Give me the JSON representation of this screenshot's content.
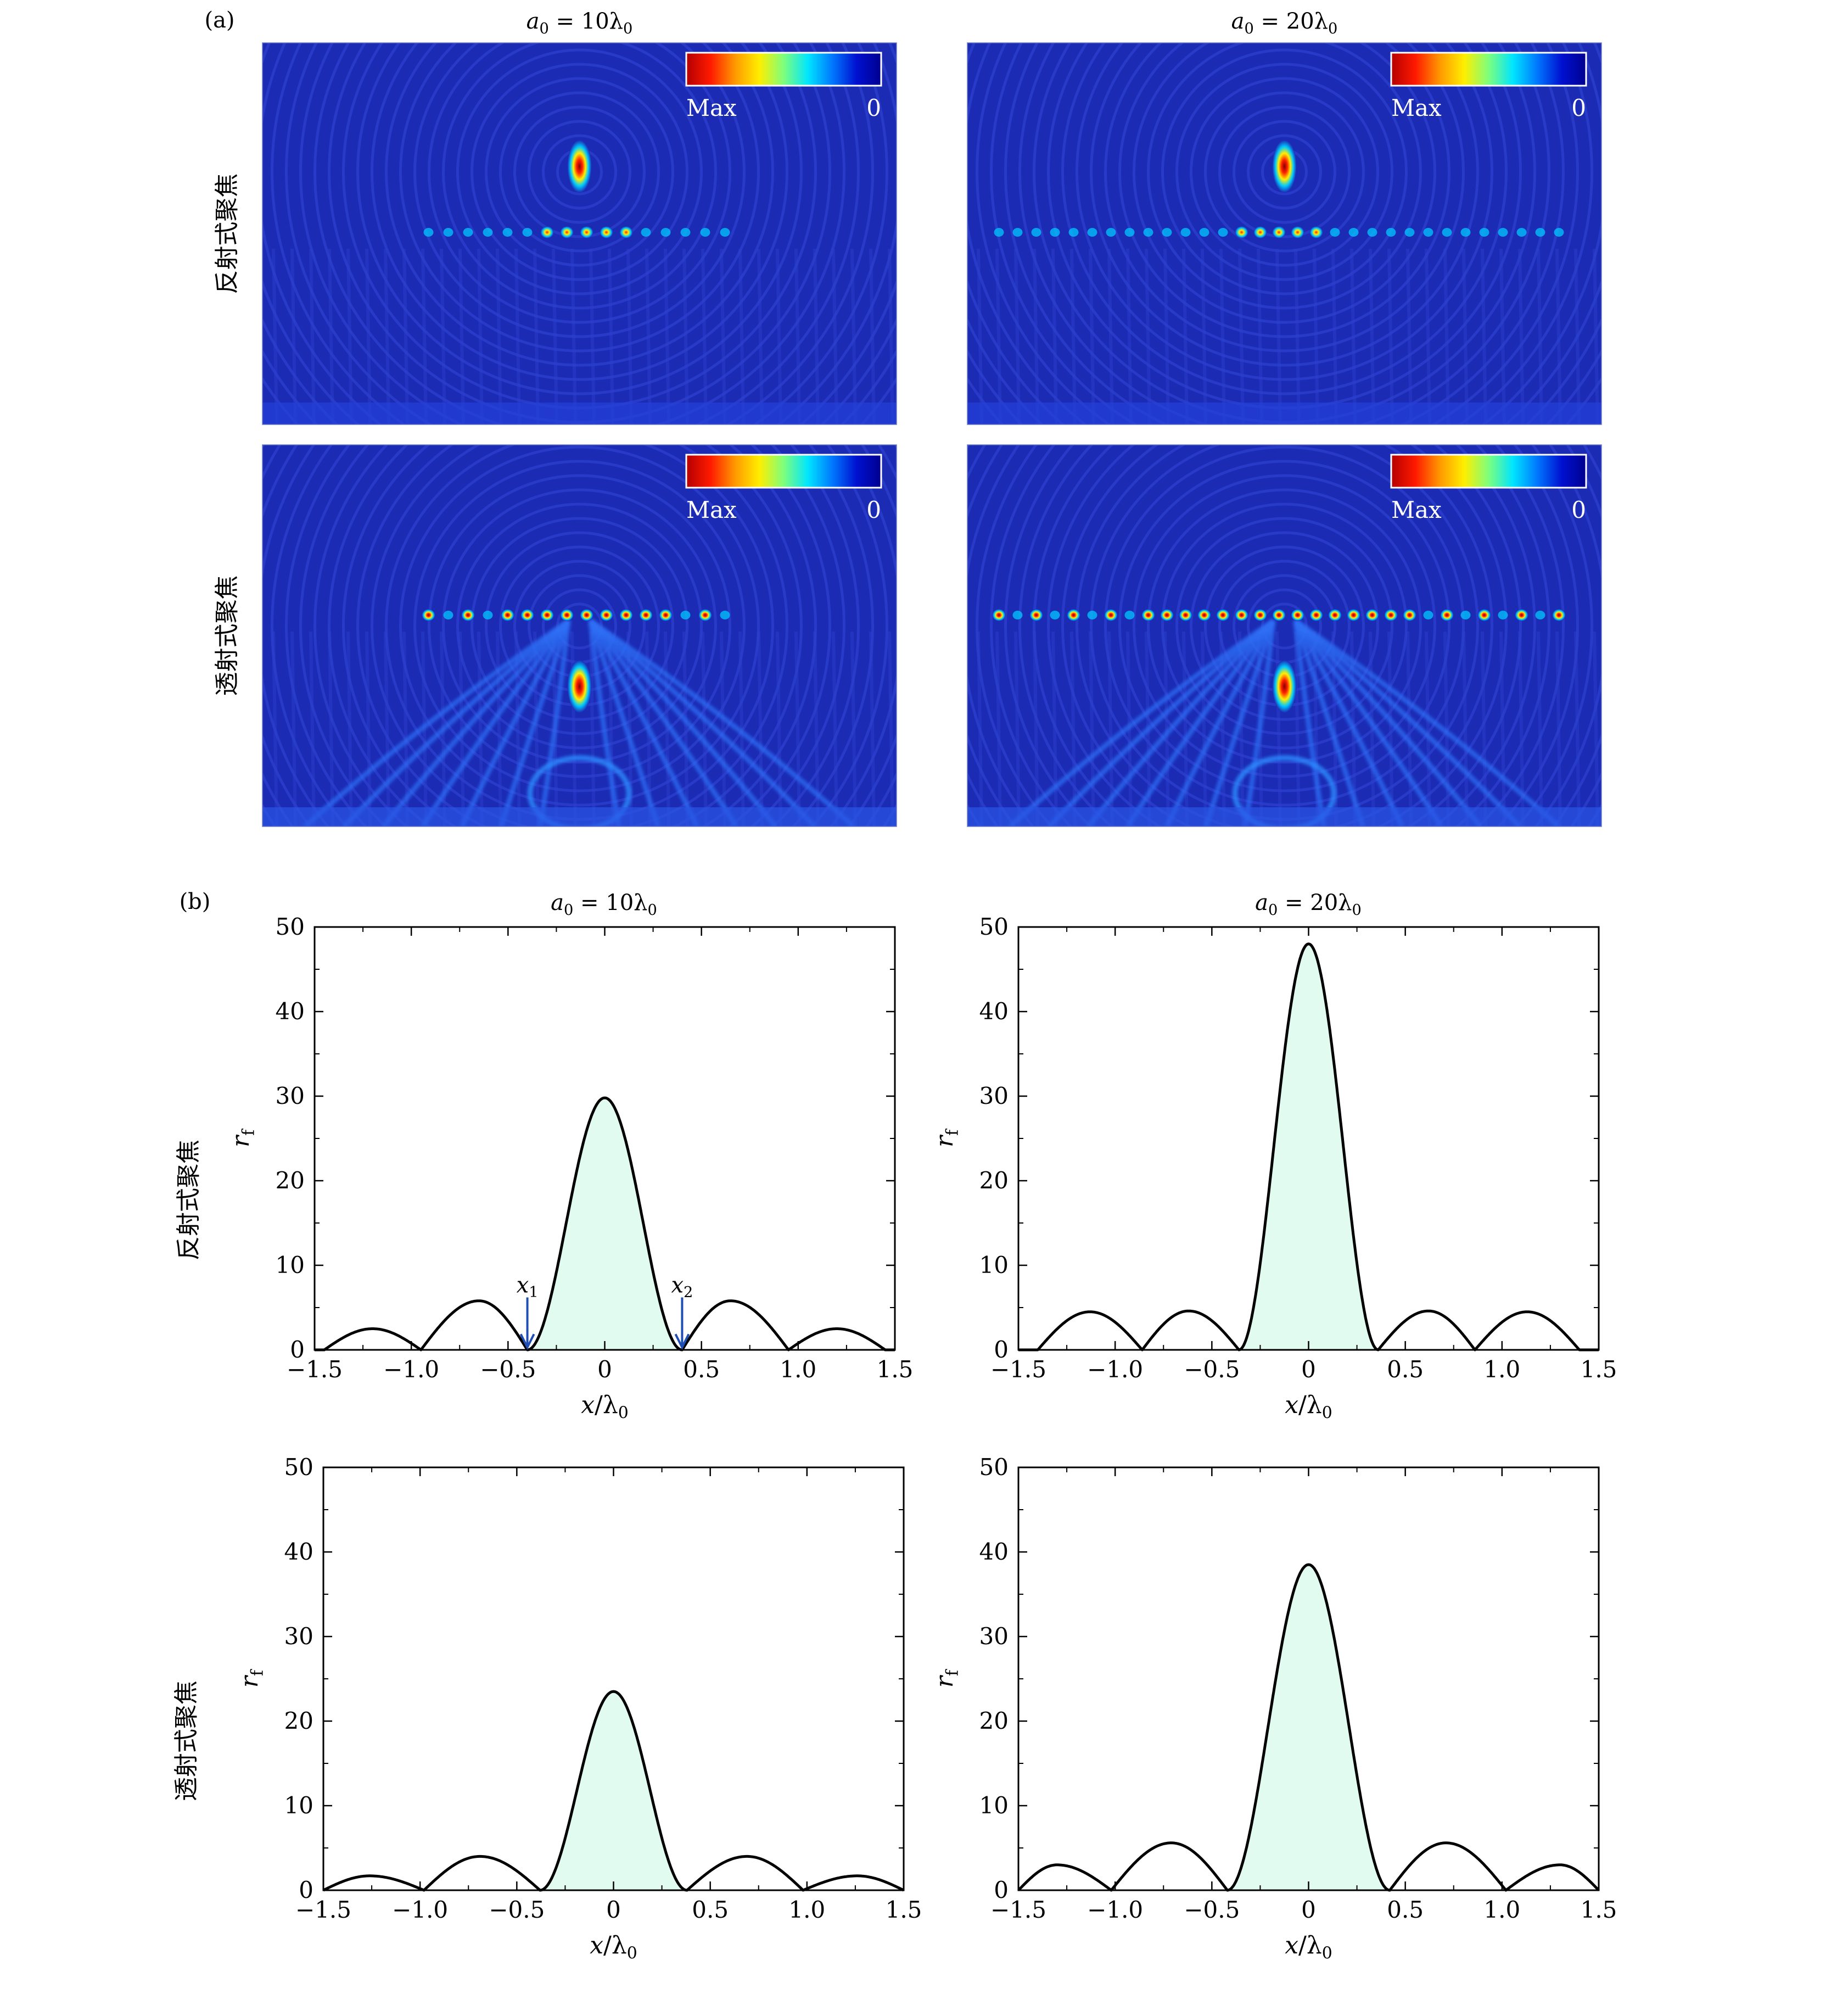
{
  "panel_a": {
    "label": "(a)",
    "columns": [
      "a_0 = 10λ_0",
      "a_0 = 20λ_0"
    ],
    "rows": [
      "反射式聚焦",
      "透射式聚焦"
    ],
    "colorbar": {
      "max_label": "Max",
      "min_label": "0",
      "stops": [
        "#b40000",
        "#ff1a00",
        "#ff9900",
        "#ffee00",
        "#7dff7d",
        "#00e5ff",
        "#0077ff",
        "#0010d0",
        "#00008f"
      ]
    },
    "field_colors": {
      "background": "#1b2bb4",
      "ring": "#3347d8",
      "hot": "#ff2200",
      "warm": "#ffee00",
      "cool": "#00c8ff"
    }
  },
  "panel_b": {
    "label": "(b)",
    "columns": [
      "a_0 = 10λ_0",
      "a_0 = 20λ_0"
    ],
    "rows": [
      "反射式聚焦",
      "透射式聚焦"
    ],
    "annotations": {
      "x1": "x_1",
      "x2": "x_2"
    },
    "colors": {
      "fill": "#e2fbf1",
      "line": "#000000",
      "arrow": "#1f4fb5"
    }
  },
  "chart_data": [
    {
      "type": "line",
      "id": "refl-10",
      "row": "反射式聚焦",
      "column": "a_0 = 10λ_0",
      "title": "a_0 = 10λ_0",
      "xlabel": "x/λ_0",
      "ylabel": "r_f",
      "xlim": [
        -1.5,
        1.5
      ],
      "ylim": [
        0,
        50
      ],
      "xticks": [
        -1.5,
        -1.0,
        -0.5,
        0,
        0.5,
        1.0,
        1.5
      ],
      "xtick_labels": [
        "−1.5",
        "−1.0",
        "−0.5",
        "0",
        "0.5",
        "1.0",
        "1.5"
      ],
      "yticks": [
        0,
        10,
        20,
        30,
        40,
        50
      ],
      "ytick_labels": [
        "0",
        "10",
        "20",
        "30",
        "40",
        "50"
      ],
      "peak": 29.8,
      "main_lobe_halfwidth": 0.4,
      "side_lobes": [
        {
          "x": 0.65,
          "y": 5.8
        },
        {
          "x": 1.2,
          "y": 2.5
        }
      ],
      "zeros": [
        0.4,
        0.95,
        1.45
      ],
      "shaded_region": [
        -0.4,
        0.4
      ],
      "annotations": [
        {
          "label": "x_1",
          "x": -0.4
        },
        {
          "label": "x_2",
          "x": 0.4
        }
      ]
    },
    {
      "type": "line",
      "id": "refl-20",
      "row": "反射式聚焦",
      "column": "a_0 = 20λ_0",
      "title": "a_0 = 20λ_0",
      "xlabel": "x/λ_0",
      "ylabel": "r_f",
      "xlim": [
        -1.5,
        1.5
      ],
      "ylim": [
        0,
        50
      ],
      "xticks": [
        -1.5,
        -1.0,
        -0.5,
        0,
        0.5,
        1.0,
        1.5
      ],
      "xtick_labels": [
        "−1.5",
        "−1.0",
        "−0.5",
        "0",
        "0.5",
        "1.0",
        "1.5"
      ],
      "yticks": [
        0,
        10,
        20,
        30,
        40,
        50
      ],
      "ytick_labels": [
        "0",
        "10",
        "20",
        "30",
        "40",
        "50"
      ],
      "peak": 48.0,
      "main_lobe_halfwidth": 0.36,
      "side_lobes": [
        {
          "x": 0.62,
          "y": 4.6
        },
        {
          "x": 1.13,
          "y": 4.5
        }
      ],
      "zeros": [
        0.36,
        0.86,
        1.4
      ],
      "shaded_region": [
        -0.36,
        0.36
      ]
    },
    {
      "type": "line",
      "id": "trans-10",
      "row": "透射式聚焦",
      "column": "a_0 = 10λ_0",
      "xlabel": "x/λ_0",
      "ylabel": "r_f",
      "xlim": [
        -1.5,
        1.5
      ],
      "ylim": [
        0,
        50
      ],
      "xticks": [
        -1.5,
        -1.0,
        -0.5,
        0,
        0.5,
        1.0,
        1.5
      ],
      "xtick_labels": [
        "−1.5",
        "−1.0",
        "−0.5",
        "0",
        "0.5",
        "1.0",
        "1.5"
      ],
      "yticks": [
        0,
        10,
        20,
        30,
        40,
        50
      ],
      "ytick_labels": [
        "0",
        "10",
        "20",
        "30",
        "40",
        "50"
      ],
      "peak": 23.5,
      "main_lobe_halfwidth": 0.38,
      "side_lobes": [
        {
          "x": 0.69,
          "y": 4.0
        },
        {
          "x": 1.26,
          "y": 1.7
        }
      ],
      "zeros": [
        0.38,
        0.98,
        1.5
      ],
      "shaded_region": [
        -0.38,
        0.38
      ]
    },
    {
      "type": "line",
      "id": "trans-20",
      "row": "透射式聚焦",
      "column": "a_0 = 20λ_0",
      "xlabel": "x/λ_0",
      "ylabel": "r_f",
      "xlim": [
        -1.5,
        1.5
      ],
      "ylim": [
        0,
        50
      ],
      "xticks": [
        -1.5,
        -1.0,
        -0.5,
        0,
        0.5,
        1.0,
        1.5
      ],
      "xtick_labels": [
        "−1.5",
        "−1.0",
        "−0.5",
        "0",
        "0.5",
        "1.0",
        "1.5"
      ],
      "yticks": [
        0,
        10,
        20,
        30,
        40,
        50
      ],
      "ytick_labels": [
        "0",
        "10",
        "20",
        "30",
        "40",
        "50"
      ],
      "peak": 38.5,
      "main_lobe_halfwidth": 0.42,
      "side_lobes": [
        {
          "x": 0.71,
          "y": 5.6
        },
        {
          "x": 1.3,
          "y": 3.0
        }
      ],
      "zeros": [
        0.42,
        1.02,
        1.5
      ],
      "shaded_region": [
        -0.42,
        0.42
      ]
    }
  ]
}
